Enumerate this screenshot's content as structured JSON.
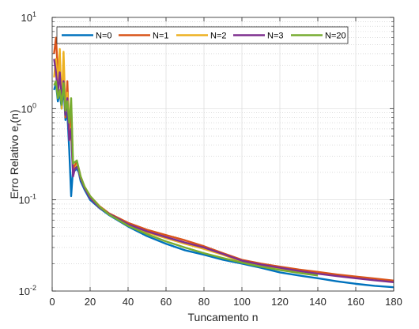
{
  "chart_data": {
    "type": "line",
    "title": "",
    "xlabel": "Tuncamento n",
    "ylabel": "Erro Relativo e",
    "ylabel_sub": "r",
    "ylabel_tail": "(n)",
    "xlim": [
      0,
      180
    ],
    "ylim": [
      0.01,
      10
    ],
    "yscale": "log",
    "grid": true,
    "legend_position": "top",
    "x_ticks": [
      "0",
      "20",
      "40",
      "60",
      "80",
      "100",
      "120",
      "140",
      "160",
      "180"
    ],
    "y_ticks": [
      {
        "base": "10",
        "exp": "-2"
      },
      {
        "base": "10",
        "exp": "-1"
      },
      {
        "base": "10",
        "exp": "0"
      },
      {
        "base": "10",
        "exp": "1"
      }
    ],
    "series": [
      {
        "name": "N=0",
        "color": "#0072BD",
        "x": [
          1,
          2,
          3,
          4,
          5,
          6,
          7,
          8,
          9,
          10,
          11,
          12,
          13,
          14,
          15,
          17,
          20,
          25,
          30,
          40,
          50,
          60,
          70,
          80,
          90,
          100,
          110,
          120,
          130,
          140,
          150,
          160,
          170,
          180
        ],
        "y": [
          1.6,
          1.9,
          1.2,
          1.5,
          1.0,
          1.8,
          0.75,
          0.9,
          0.35,
          0.11,
          0.22,
          0.21,
          0.22,
          0.2,
          0.16,
          0.13,
          0.1,
          0.081,
          0.068,
          0.051,
          0.04,
          0.033,
          0.028,
          0.025,
          0.022,
          0.02,
          0.018,
          0.016,
          0.0148,
          0.0138,
          0.0128,
          0.012,
          0.0114,
          0.011
        ]
      },
      {
        "name": "N=1",
        "color": "#D95319",
        "x": [
          1,
          2,
          3,
          4,
          5,
          6,
          7,
          8,
          9,
          10,
          11,
          12,
          13,
          14,
          15,
          17,
          20,
          25,
          30,
          40,
          50,
          60,
          70,
          80,
          90,
          100,
          110,
          120,
          130,
          140,
          150,
          160,
          170,
          180
        ],
        "y": [
          4.0,
          6.0,
          2.5,
          3.0,
          1.1,
          2.8,
          0.8,
          2.0,
          0.5,
          1.1,
          0.22,
          0.24,
          0.26,
          0.22,
          0.18,
          0.14,
          0.11,
          0.085,
          0.071,
          0.056,
          0.047,
          0.041,
          0.036,
          0.031,
          0.026,
          0.022,
          0.02,
          0.0185,
          0.0172,
          0.0162,
          0.0152,
          0.0144,
          0.0137,
          0.013
        ]
      },
      {
        "name": "N=2",
        "color": "#EDB120",
        "x": [
          1,
          2,
          3,
          4,
          5,
          6,
          7,
          8,
          9,
          10,
          11,
          12,
          13,
          14,
          15,
          17,
          20,
          25,
          30,
          40,
          50,
          60,
          70,
          80,
          90,
          100,
          110,
          120,
          130,
          140
        ],
        "y": [
          2.2,
          3.5,
          1.8,
          4.5,
          1.0,
          4.2,
          0.9,
          1.5,
          0.6,
          0.5,
          0.2,
          0.22,
          0.24,
          0.21,
          0.17,
          0.14,
          0.108,
          0.084,
          0.069,
          0.054,
          0.044,
          0.038,
          0.033,
          0.029,
          0.025,
          0.021,
          0.0192,
          0.0177,
          0.0165,
          0.0155
        ]
      },
      {
        "name": "N=3",
        "color": "#7E2F8E",
        "x": [
          1,
          2,
          3,
          4,
          5,
          6,
          7,
          8,
          9,
          10,
          11,
          12,
          13,
          14,
          15,
          17,
          20,
          25,
          30,
          40,
          50,
          60,
          70,
          80,
          90,
          100,
          110,
          120,
          130,
          140,
          150,
          160,
          170,
          180
        ],
        "y": [
          3.5,
          2.5,
          1.5,
          2.5,
          1.2,
          2.0,
          0.85,
          1.3,
          0.45,
          0.6,
          0.18,
          0.22,
          0.23,
          0.21,
          0.17,
          0.135,
          0.104,
          0.082,
          0.07,
          0.054,
          0.045,
          0.039,
          0.034,
          0.03,
          0.0255,
          0.0215,
          0.0195,
          0.018,
          0.0166,
          0.0155,
          0.0146,
          0.0138,
          0.0131,
          0.0125
        ]
      },
      {
        "name": "N=20",
        "color": "#77AC30",
        "x": [
          1,
          2,
          3,
          4,
          5,
          6,
          7,
          8,
          9,
          10,
          11,
          12,
          13,
          14,
          15,
          17,
          20,
          25,
          30,
          40,
          50,
          60,
          70,
          80,
          90,
          100,
          110,
          120,
          130,
          140
        ],
        "y": [
          1.8,
          2.0,
          1.3,
          1.6,
          1.1,
          1.9,
          0.95,
          1.2,
          0.7,
          1.3,
          0.25,
          0.26,
          0.27,
          0.22,
          0.18,
          0.14,
          0.11,
          0.084,
          0.069,
          0.052,
          0.042,
          0.035,
          0.03,
          0.026,
          0.023,
          0.0205,
          0.0185,
          0.017,
          0.0158,
          0.0148
        ]
      }
    ]
  }
}
